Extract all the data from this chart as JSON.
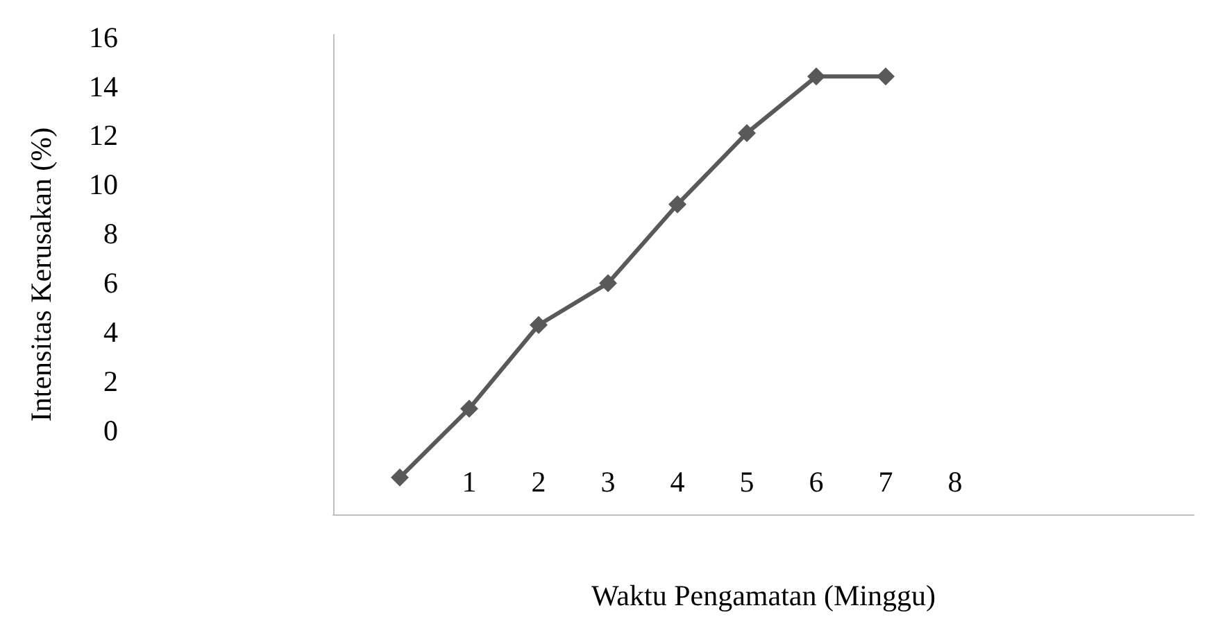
{
  "chart_data": {
    "type": "line",
    "xlabel": "Waktu Pengamatan (Minggu)",
    "ylabel": "Intensitas Kerusakan (%)",
    "x": [
      0,
      1,
      2,
      3,
      4,
      5,
      6,
      7
    ],
    "series": [
      {
        "color": "#595959",
        "values": [
          -1.9,
          0.9,
          4.3,
          6.0,
          9.2,
          12.1,
          14.4,
          14.4
        ]
      }
    ],
    "xlim": [
      -0.96,
      11.44
    ],
    "xticks": [
      1,
      2,
      3,
      4,
      5,
      6,
      7,
      8
    ],
    "ylim": [
      -3.4,
      16.1
    ],
    "yticks": [
      0,
      2,
      4,
      6,
      8,
      10,
      12,
      14,
      16
    ],
    "grid": false,
    "marker": "diamond",
    "line_style": "solid"
  }
}
